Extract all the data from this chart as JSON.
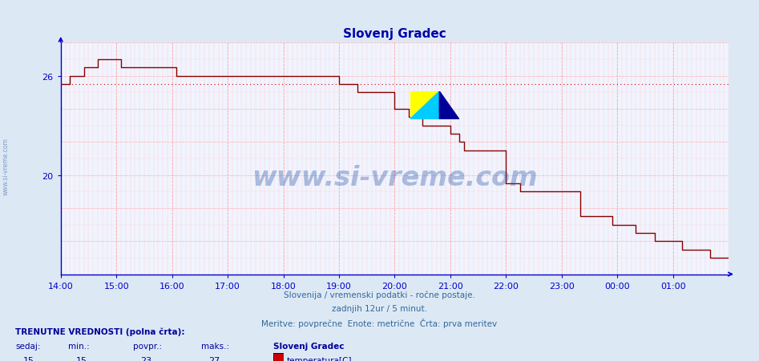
{
  "title": "Slovenj Gradec",
  "bg_color": "#dce9f5",
  "plot_bg_color": "#f0f4ff",
  "line_color": "#8b0000",
  "dotted_line_color": "#cc0000",
  "grid_major_color": "#ffaaaa",
  "grid_minor_color": "#ffcccc",
  "axis_color": "#0000cc",
  "title_color": "#0000aa",
  "label_color": "#336699",
  "watermark_color": "#2255aa",
  "xlim_start": 0,
  "xlim_end": 144,
  "ylim_min": 14.0,
  "ylim_max": 28.0,
  "ytick_labels": [
    "20",
    "26"
  ],
  "ytick_values": [
    20,
    26
  ],
  "xtick_labels": [
    "14:00",
    "15:00",
    "16:00",
    "17:00",
    "18:00",
    "19:00",
    "20:00",
    "21:00",
    "22:00",
    "23:00",
    "00:00",
    "01:00"
  ],
  "xtick_positions": [
    0,
    12,
    24,
    36,
    48,
    60,
    72,
    84,
    96,
    108,
    120,
    132
  ],
  "avg_value": 25.5,
  "subtitle1": "Slovenija / vremenski podatki - ročne postaje.",
  "subtitle2": "zadnjih 12ur / 5 minut.",
  "subtitle3": "Meritve: povprečne  Enote: metrične  Črta: prva meritev",
  "footer1": "TRENUTNE VREDNOSTI (polna črta):",
  "footer_labels": [
    "sedaj:",
    "min.:",
    "povpr.:",
    "maks.:"
  ],
  "footer_values": [
    "15",
    "15",
    "23",
    "27"
  ],
  "legend_station": "Slovenj Gradec",
  "legend_label": "temperatura[C]",
  "legend_color": "#cc0000",
  "watermark_text": "www.si-vreme.com",
  "sidewatermark": "www.si-vreme.com",
  "temp_data": [
    [
      0,
      25.5
    ],
    [
      2,
      26.0
    ],
    [
      5,
      26.5
    ],
    [
      8,
      27.0
    ],
    [
      12,
      27.0
    ],
    [
      13,
      26.5
    ],
    [
      24,
      26.5
    ],
    [
      25,
      26.0
    ],
    [
      59,
      26.0
    ],
    [
      60,
      25.5
    ],
    [
      64,
      25.0
    ],
    [
      72,
      24.0
    ],
    [
      75,
      23.5
    ],
    [
      78,
      23.0
    ],
    [
      84,
      22.5
    ],
    [
      86,
      22.0
    ],
    [
      87,
      21.5
    ],
    [
      96,
      19.5
    ],
    [
      99,
      19.0
    ],
    [
      112,
      17.5
    ],
    [
      119,
      17.0
    ],
    [
      124,
      16.5
    ],
    [
      128,
      16.0
    ],
    [
      134,
      15.5
    ],
    [
      140,
      15.0
    ],
    [
      144,
      15.0
    ]
  ]
}
